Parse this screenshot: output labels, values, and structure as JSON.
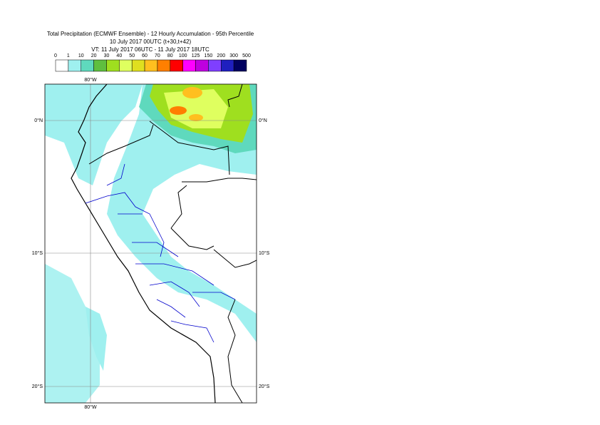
{
  "header": {
    "title": "Total Precipitation (ECMWF Ensemble) - 12 Hourly Accumulation - 95th Percentile",
    "base_time": "10 July 2017 00UTC (t+30,t+42)",
    "valid_time": "VT: 11 July 2017 06UTC - 11 July 2017 18UTC"
  },
  "legend": {
    "labels": [
      "0",
      "1",
      "10",
      "20",
      "30",
      "40",
      "50",
      "60",
      "70",
      "80",
      "100",
      "125",
      "150",
      "200",
      "300",
      "500"
    ],
    "colors": [
      "#ffffff",
      "#9ff0ef",
      "#5fd9bd",
      "#5fbf3f",
      "#9fdf1f",
      "#dfff5f",
      "#dfdf1f",
      "#ffbf1f",
      "#ff7f00",
      "#ff0000",
      "#ff00ff",
      "#bf00df",
      "#7f3fff",
      "#1f1fbf",
      "#00005f"
    ]
  },
  "map": {
    "lon_label_top": "80°W",
    "lon_label_bottom": "80°W",
    "lat_labels": [
      "0°N",
      "10°S",
      "20°S"
    ]
  }
}
